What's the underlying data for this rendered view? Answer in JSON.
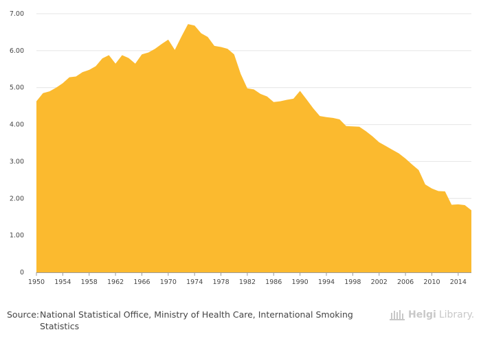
{
  "chart_data": {
    "type": "area",
    "color": "#fbba2f",
    "title": "",
    "xlabel": "",
    "ylabel": "",
    "xlim": [
      1950,
      2016
    ],
    "ylim": [
      0,
      7
    ],
    "grid": true,
    "x": [
      1950,
      1951,
      1952,
      1953,
      1954,
      1955,
      1956,
      1957,
      1958,
      1959,
      1960,
      1961,
      1962,
      1963,
      1964,
      1965,
      1966,
      1967,
      1968,
      1969,
      1970,
      1971,
      1972,
      1973,
      1974,
      1975,
      1976,
      1977,
      1978,
      1979,
      1980,
      1981,
      1982,
      1983,
      1984,
      1985,
      1986,
      1987,
      1988,
      1989,
      1990,
      1991,
      1992,
      1993,
      1994,
      1995,
      1996,
      1997,
      1998,
      1999,
      2000,
      2001,
      2002,
      2003,
      2004,
      2005,
      2006,
      2007,
      2008,
      2009,
      2010,
      2011,
      2012,
      2013,
      2014,
      2015,
      2016
    ],
    "values": [
      4.63,
      4.85,
      4.9,
      5.0,
      5.12,
      5.28,
      5.3,
      5.42,
      5.48,
      5.58,
      5.79,
      5.88,
      5.65,
      5.88,
      5.8,
      5.65,
      5.9,
      5.95,
      6.05,
      6.18,
      6.3,
      6.02,
      6.38,
      6.72,
      6.68,
      6.47,
      6.37,
      6.13,
      6.1,
      6.05,
      5.9,
      5.37,
      4.98,
      4.95,
      4.83,
      4.76,
      4.61,
      4.63,
      4.67,
      4.7,
      4.91,
      4.68,
      4.44,
      4.23,
      4.2,
      4.18,
      4.14,
      3.96,
      3.95,
      3.94,
      3.82,
      3.68,
      3.52,
      3.42,
      3.32,
      3.22,
      3.08,
      2.92,
      2.77,
      2.38,
      2.27,
      2.2,
      2.19,
      1.83,
      1.84,
      1.82,
      1.68
    ],
    "y_ticks": [
      {
        "value": 0,
        "label": "0"
      },
      {
        "value": 1,
        "label": "1.00"
      },
      {
        "value": 2,
        "label": "2.00"
      },
      {
        "value": 3,
        "label": "3.00"
      },
      {
        "value": 4,
        "label": "4.00"
      },
      {
        "value": 5,
        "label": "5.00"
      },
      {
        "value": 6,
        "label": "6.00"
      },
      {
        "value": 7,
        "label": "7.00"
      }
    ],
    "x_ticks": [
      1950,
      1954,
      1958,
      1962,
      1966,
      1970,
      1974,
      1978,
      1982,
      1986,
      1990,
      1994,
      1998,
      2002,
      2006,
      2010,
      2014
    ]
  },
  "source": {
    "label": "Source:",
    "text": "National Statistical Office, Ministry of Health Care, International Smoking Statistics"
  },
  "brand": {
    "name": "Helgi",
    "suffix": "Library."
  }
}
